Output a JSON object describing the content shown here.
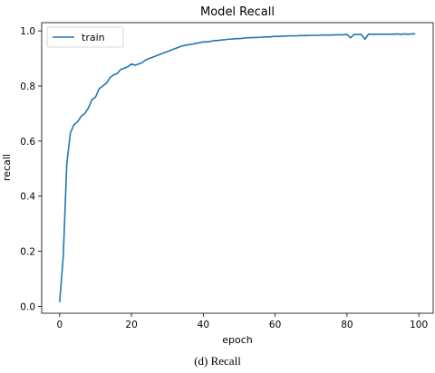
{
  "chart_data": {
    "type": "line",
    "title": "Model Recall",
    "xlabel": "epoch",
    "ylabel": "recall",
    "xlim": [
      -5,
      104
    ],
    "ylim": [
      -0.025,
      1.03
    ],
    "xticks": [
      0,
      20,
      40,
      60,
      80,
      100
    ],
    "yticks": [
      0.0,
      0.2,
      0.4,
      0.6,
      0.8,
      1.0
    ],
    "grid": false,
    "legend_position": "top-left",
    "series": [
      {
        "name": "train",
        "color": "#1f77b4",
        "x": [
          0,
          1,
          2,
          3,
          4,
          5,
          6,
          7,
          8,
          9,
          10,
          11,
          12,
          13,
          14,
          15,
          16,
          17,
          18,
          19,
          20,
          21,
          22,
          23,
          24,
          25,
          26,
          27,
          28,
          29,
          30,
          31,
          32,
          33,
          34,
          35,
          36,
          37,
          38,
          39,
          40,
          41,
          42,
          43,
          44,
          45,
          46,
          47,
          48,
          49,
          50,
          51,
          52,
          53,
          54,
          55,
          56,
          57,
          58,
          59,
          60,
          61,
          62,
          63,
          64,
          65,
          66,
          67,
          68,
          69,
          70,
          71,
          72,
          73,
          74,
          75,
          76,
          77,
          78,
          79,
          80,
          81,
          82,
          83,
          84,
          85,
          86,
          87,
          88,
          89,
          90,
          91,
          92,
          93,
          94,
          95,
          96,
          97,
          98,
          99
        ],
        "values": [
          0.015,
          0.18,
          0.52,
          0.63,
          0.66,
          0.67,
          0.69,
          0.7,
          0.72,
          0.75,
          0.76,
          0.79,
          0.8,
          0.81,
          0.83,
          0.84,
          0.845,
          0.86,
          0.865,
          0.87,
          0.88,
          0.875,
          0.88,
          0.885,
          0.895,
          0.9,
          0.905,
          0.91,
          0.915,
          0.92,
          0.925,
          0.93,
          0.935,
          0.94,
          0.945,
          0.948,
          0.95,
          0.952,
          0.955,
          0.957,
          0.96,
          0.96,
          0.962,
          0.965,
          0.965,
          0.967,
          0.968,
          0.97,
          0.97,
          0.972,
          0.972,
          0.973,
          0.975,
          0.975,
          0.976,
          0.976,
          0.977,
          0.978,
          0.978,
          0.979,
          0.98,
          0.98,
          0.981,
          0.981,
          0.982,
          0.982,
          0.982,
          0.983,
          0.983,
          0.983,
          0.984,
          0.984,
          0.984,
          0.985,
          0.985,
          0.985,
          0.985,
          0.986,
          0.986,
          0.986,
          0.987,
          0.975,
          0.987,
          0.987,
          0.987,
          0.97,
          0.988,
          0.988,
          0.988,
          0.988,
          0.988,
          0.988,
          0.988,
          0.988,
          0.989,
          0.987,
          0.989,
          0.988,
          0.989,
          0.989
        ]
      }
    ]
  },
  "caption": "(d) Recall"
}
